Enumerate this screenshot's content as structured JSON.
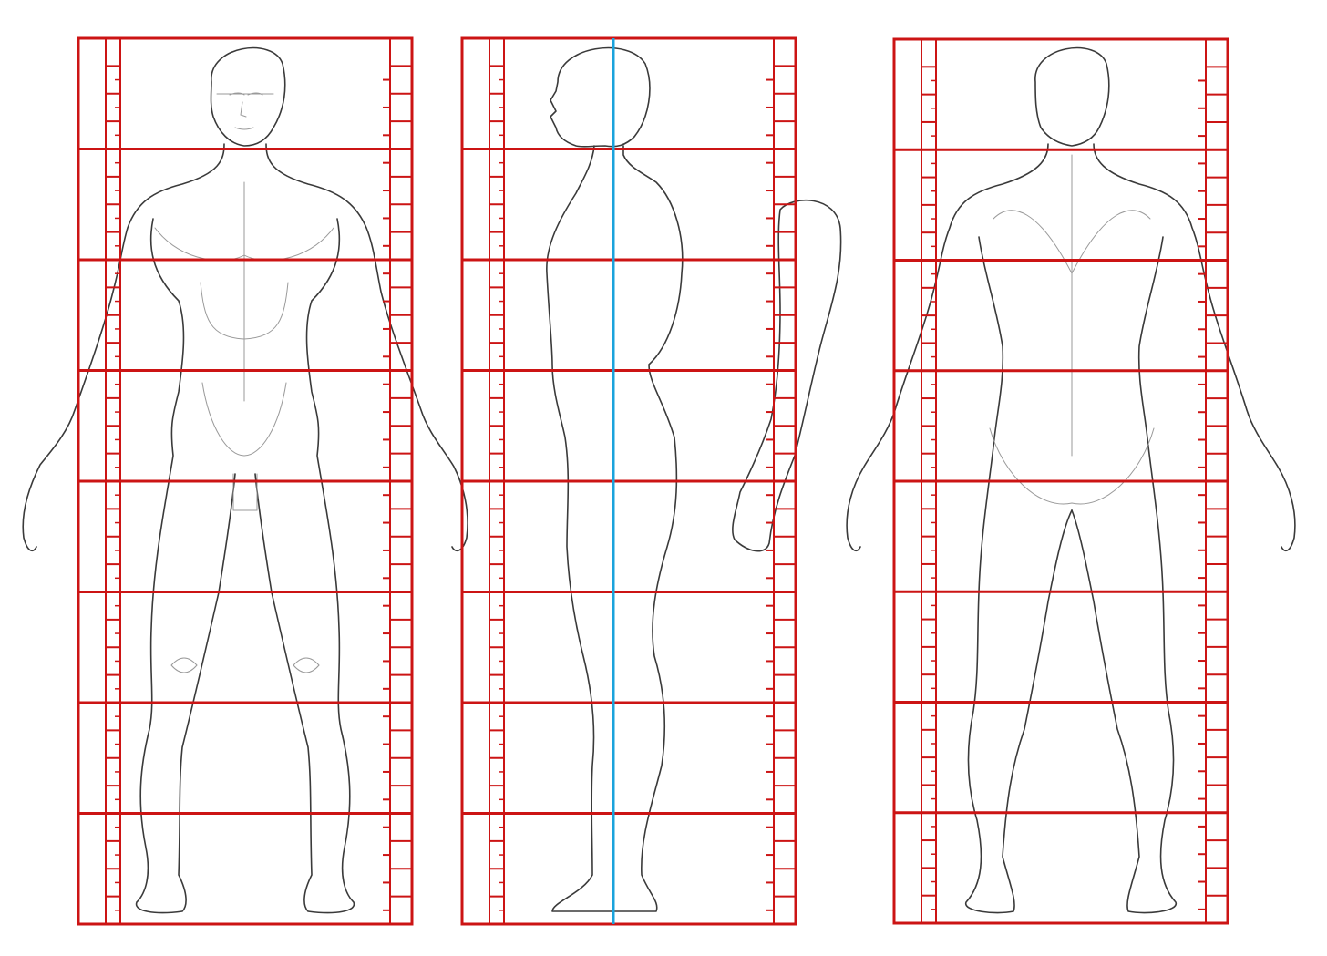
{
  "diagram": {
    "head_units": 8,
    "ruler_ticks_per_head": 4,
    "colors": {
      "grid": "#cc1414",
      "center_line": "#1aa3dc",
      "sketch": "#3a3a3a",
      "background": "#ffffff"
    },
    "views": [
      {
        "id": "front",
        "name": "front-view"
      },
      {
        "id": "side",
        "name": "side-view"
      },
      {
        "id": "back",
        "name": "back-view"
      }
    ]
  }
}
